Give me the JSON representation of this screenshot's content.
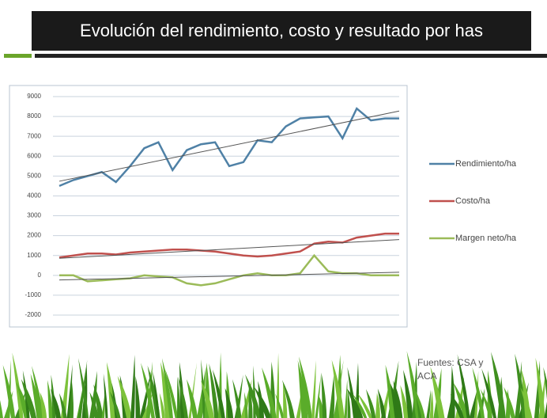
{
  "title": "Evolución del rendimiento, costo y resultado por has",
  "source": "Fuentes: CSA y ACA",
  "chart_data": {
    "type": "line",
    "ylim": [
      -2000,
      9000
    ],
    "yticks": [
      -2000,
      -1000,
      0,
      1000,
      2000,
      3000,
      4000,
      5000,
      6000,
      7000,
      8000,
      9000
    ],
    "grid": true,
    "trendlines": true,
    "legend": "right",
    "series": [
      {
        "name": "Rendimiento/ha",
        "color": "#4f81a6",
        "values": [
          4500,
          4800,
          5000,
          5200,
          4700,
          5500,
          6400,
          6700,
          5300,
          6300,
          6600,
          6700,
          5500,
          5700,
          6800,
          6700,
          7500,
          7900,
          7950,
          8000,
          6900,
          8400,
          7800,
          7900,
          7900
        ]
      },
      {
        "name": "Costo/ha",
        "color": "#c0504d",
        "values": [
          900,
          1000,
          1100,
          1100,
          1050,
          1150,
          1200,
          1250,
          1300,
          1300,
          1250,
          1200,
          1100,
          1000,
          950,
          1000,
          1100,
          1200,
          1600,
          1700,
          1650,
          1900,
          2000,
          2100,
          2100
        ]
      },
      {
        "name": "Margen neto/ha",
        "color": "#9bbb59",
        "values": [
          0,
          0,
          -300,
          -250,
          -200,
          -150,
          0,
          -50,
          -100,
          -400,
          -500,
          -400,
          -200,
          0,
          100,
          0,
          0,
          100,
          1000,
          200,
          100,
          100,
          0,
          0,
          0
        ]
      }
    ]
  }
}
